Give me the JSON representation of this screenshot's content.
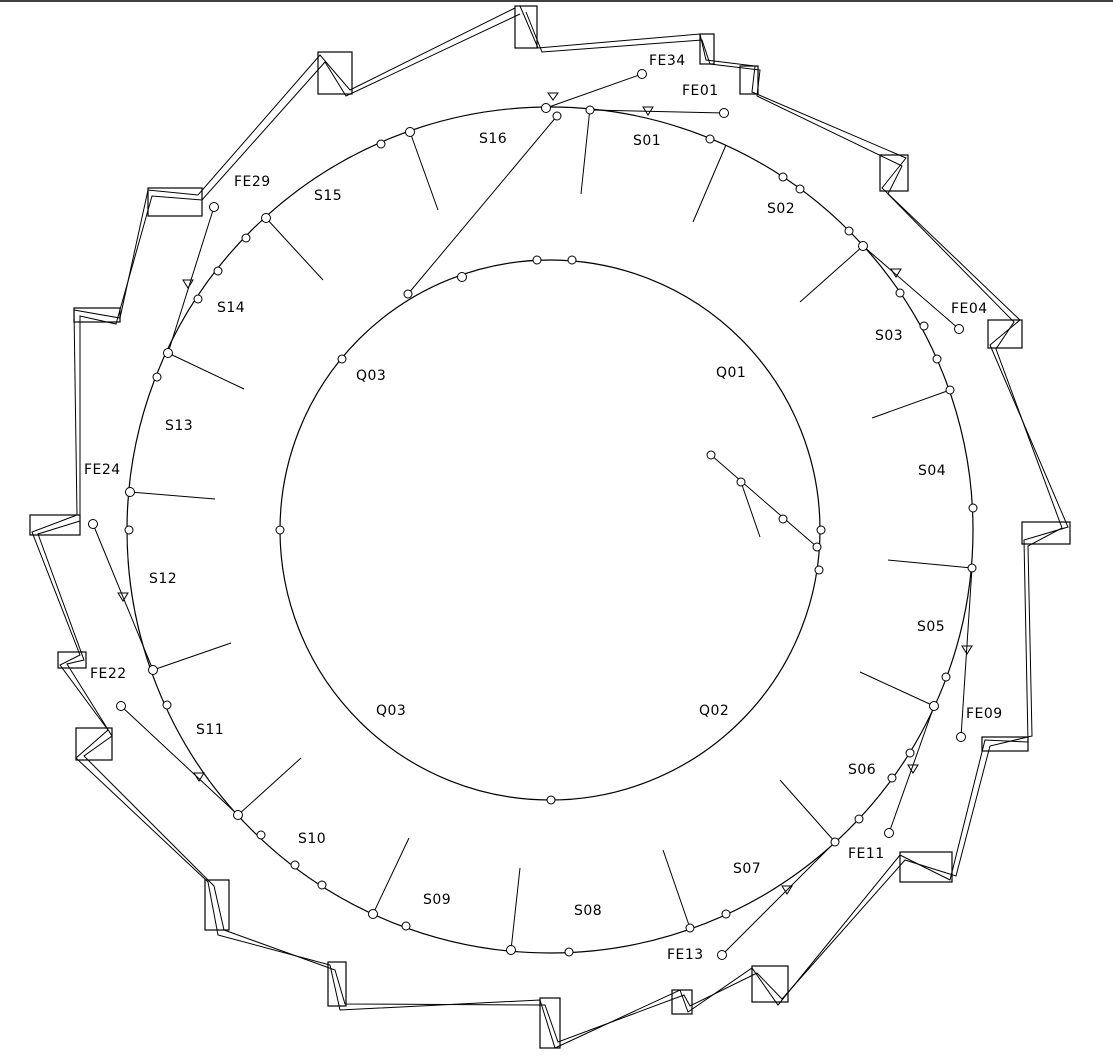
{
  "diagram": {
    "zones": [
      "Q01",
      "Q02",
      "Q03",
      "Q03"
    ],
    "sectors": [
      "S01",
      "S02",
      "S03",
      "S04",
      "S05",
      "S06",
      "S07",
      "S08",
      "S09",
      "S10",
      "S11",
      "S12",
      "S13",
      "S14",
      "S15",
      "S16"
    ],
    "feeders": [
      "FE01",
      "FE04",
      "FE09",
      "FE11",
      "FE13",
      "FE22",
      "FE24",
      "FE29",
      "FE34"
    ],
    "line_color": "#000000",
    "background": "#ffffff"
  }
}
